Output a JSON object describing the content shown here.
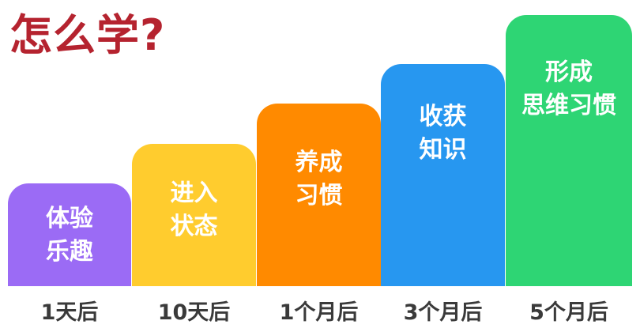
{
  "title": "怎么学?",
  "steps": [
    {
      "lines": [
        "体验",
        "乐趣"
      ],
      "time": "1天后",
      "color": "#9b6bf5"
    },
    {
      "lines": [
        "进入",
        "状态"
      ],
      "time": "10天后",
      "color": "#ffcc2e"
    },
    {
      "lines": [
        "养成",
        "习惯"
      ],
      "time": "1个月后",
      "color": "#ff8a00"
    },
    {
      "lines": [
        "收获",
        "知识"
      ],
      "time": "3个月后",
      "color": "#2797f0"
    },
    {
      "lines": [
        "形成",
        "思维习惯"
      ],
      "time": "5个月后",
      "color": "#2ed574"
    }
  ],
  "colors": {
    "title": "#b5232f",
    "step_text": "#ffffff",
    "time_text": "#3a3a3a"
  }
}
